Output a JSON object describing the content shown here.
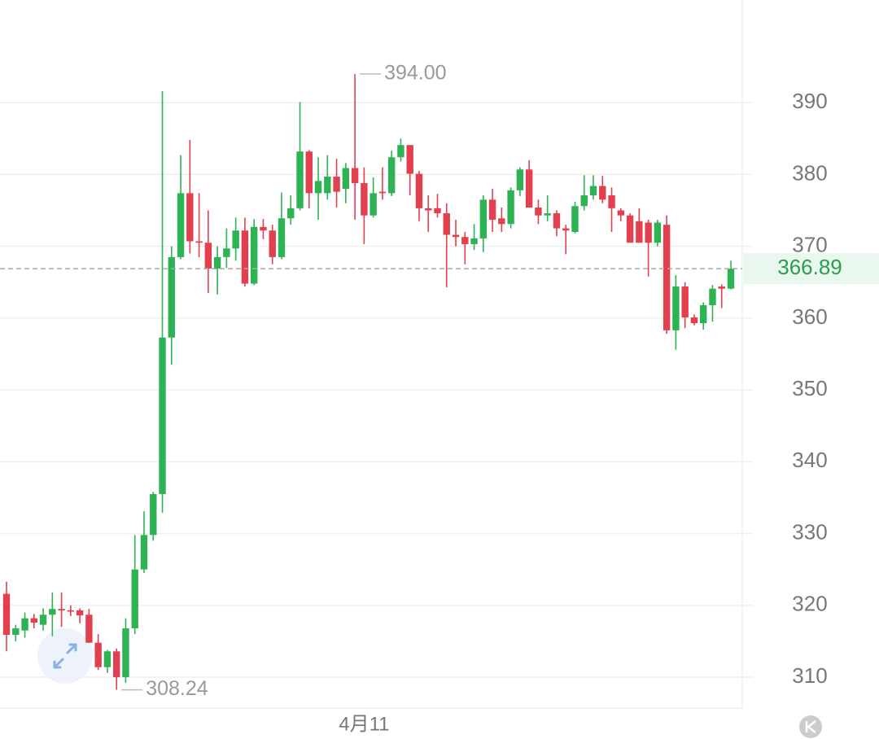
{
  "chart_data": {
    "type": "candlestick",
    "up_color": "#2eb354",
    "down_color": "#e3404f",
    "categories": [
      null,
      null,
      null,
      null,
      null,
      null,
      null,
      null,
      null,
      null,
      null,
      null,
      null,
      null,
      null,
      null,
      null,
      null,
      null,
      null,
      null,
      null,
      null,
      null,
      null,
      null,
      null,
      null,
      null,
      null,
      null,
      null,
      null,
      null,
      null,
      null,
      null,
      null,
      null,
      "4月11",
      null,
      null,
      null,
      null,
      null,
      null,
      null,
      null,
      null,
      null,
      null,
      null,
      null,
      null,
      null,
      null,
      null,
      null,
      null,
      null,
      null,
      null,
      null,
      null,
      null,
      null,
      null,
      null,
      null,
      null,
      null,
      null,
      null,
      null,
      null,
      null,
      null,
      null,
      null,
      null
    ],
    "open": [
      321.6,
      315.9,
      316.5,
      318.2,
      317.3,
      318.7,
      319.5,
      319.3,
      319.3,
      318.7,
      314.8,
      311.4,
      313.6,
      310.0,
      316.8,
      325.0,
      329.8,
      335.5,
      357.3,
      368.5,
      377.4,
      370.7,
      370.5,
      366.9,
      368.5,
      369.7,
      372.2,
      364.8,
      372.7,
      372.2,
      368.5,
      373.9,
      375.3,
      383.2,
      377.4,
      377.4,
      379.7,
      378.0,
      380.9,
      378.8,
      374.3,
      377.6,
      377.4,
      382.4,
      384.1,
      380.1,
      375.3,
      375.3,
      374.6,
      371.6,
      371.3,
      370.3,
      371.1,
      376.5,
      373.9,
      373.1,
      377.8,
      380.7,
      375.4,
      374.3,
      374.6,
      372.5,
      372.0,
      375.6,
      377.1,
      378.4,
      377.1,
      375.0,
      374.3,
      373.5,
      373.3,
      370.5,
      373.0,
      358.3,
      364.4,
      360.1,
      359.3,
      361.8,
      364.4,
      364.1
    ],
    "high": [
      323.3,
      317.3,
      319.0,
      318.8,
      319.6,
      321.8,
      321.8,
      320.0,
      319.6,
      319.5,
      316.0,
      313.8,
      314.0,
      318.2,
      329.8,
      333.1,
      335.8,
      391.6,
      370.0,
      382.7,
      384.8,
      377.4,
      375.0,
      370.0,
      372.5,
      374.0,
      374.0,
      373.8,
      373.8,
      373.0,
      377.5,
      377.1,
      390.1,
      383.4,
      382.4,
      382.7,
      382.2,
      381.6,
      394,
      381.0,
      379.6,
      381.0,
      383.3,
      385.0,
      384.1,
      380.5,
      377.1,
      377.3,
      376.0,
      373.7,
      372.0,
      373.1,
      377.1,
      378.0,
      375.4,
      378.2,
      381.0,
      382.0,
      376.5,
      377.1,
      375.0,
      373.0,
      376.2,
      379.9,
      379.9,
      379.8,
      378.2,
      375.3,
      374.6,
      375.3,
      373.7,
      373.7,
      374.3,
      366.0,
      365.0,
      360.5,
      362.2,
      364.6,
      364.7,
      368.0
    ],
    "low": [
      313.6,
      315.0,
      315.5,
      316.8,
      316.5,
      315.7,
      317.0,
      318.5,
      317.5,
      314.8,
      311.0,
      310.6,
      308.24,
      309.2,
      316.0,
      324.5,
      329.0,
      332.9,
      353.5,
      368.2,
      369.0,
      368.5,
      363.5,
      363.3,
      367.0,
      368.0,
      364.4,
      364.6,
      371.0,
      367.5,
      368.2,
      373.0,
      375.0,
      375.3,
      373.7,
      376.5,
      375.4,
      376.0,
      373.7,
      370.3,
      374.0,
      376.5,
      377.0,
      381.8,
      377.1,
      373.5,
      372.0,
      374.0,
      364.3,
      370.0,
      367.5,
      369.5,
      369.2,
      372.0,
      372.0,
      372.5,
      377.0,
      375.4,
      373.1,
      373.5,
      371.4,
      368.9,
      371.8,
      375.0,
      376.5,
      376.0,
      372.0,
      373.5,
      370.5,
      370.5,
      365.8,
      370.0,
      357.8,
      355.6,
      358.6,
      359.0,
      358.4,
      359.5,
      361.4,
      364.0
    ],
    "close": [
      315.9,
      316.8,
      318.2,
      317.6,
      318.7,
      319.5,
      319.3,
      319.2,
      318.6,
      314.8,
      311.4,
      313.6,
      310.0,
      316.8,
      325.0,
      329.8,
      335.5,
      357.3,
      368.5,
      377.4,
      370.7,
      370.5,
      366.9,
      368.5,
      369.7,
      372.2,
      364.8,
      372.7,
      372.2,
      368.5,
      373.9,
      375.3,
      383.2,
      377.4,
      379.1,
      379.7,
      377.6,
      380.9,
      378.8,
      374.3,
      377.4,
      377.4,
      382.4,
      384.1,
      380.1,
      375.3,
      375.0,
      374.6,
      371.6,
      371.3,
      370.3,
      371.1,
      376.5,
      373.7,
      373.1,
      377.8,
      380.7,
      375.4,
      374.3,
      374.6,
      372.5,
      372.2,
      375.6,
      377.1,
      378.4,
      376.5,
      375.3,
      374.3,
      370.5,
      370.5,
      370.5,
      373.3,
      358.3,
      364.4,
      360.1,
      359.3,
      361.8,
      364.1,
      364.1,
      366.89
    ],
    "ylim": [
      305.7,
      404.3
    ],
    "yticks": [
      310,
      320,
      330,
      340,
      350,
      360,
      370,
      380,
      390
    ],
    "grid": true,
    "annotations": [
      {
        "value": 394,
        "label": "394.00"
      },
      {
        "value": 308.24,
        "label": "308.24"
      }
    ],
    "last_price": {
      "value": 366.89,
      "label": "366.89"
    }
  }
}
